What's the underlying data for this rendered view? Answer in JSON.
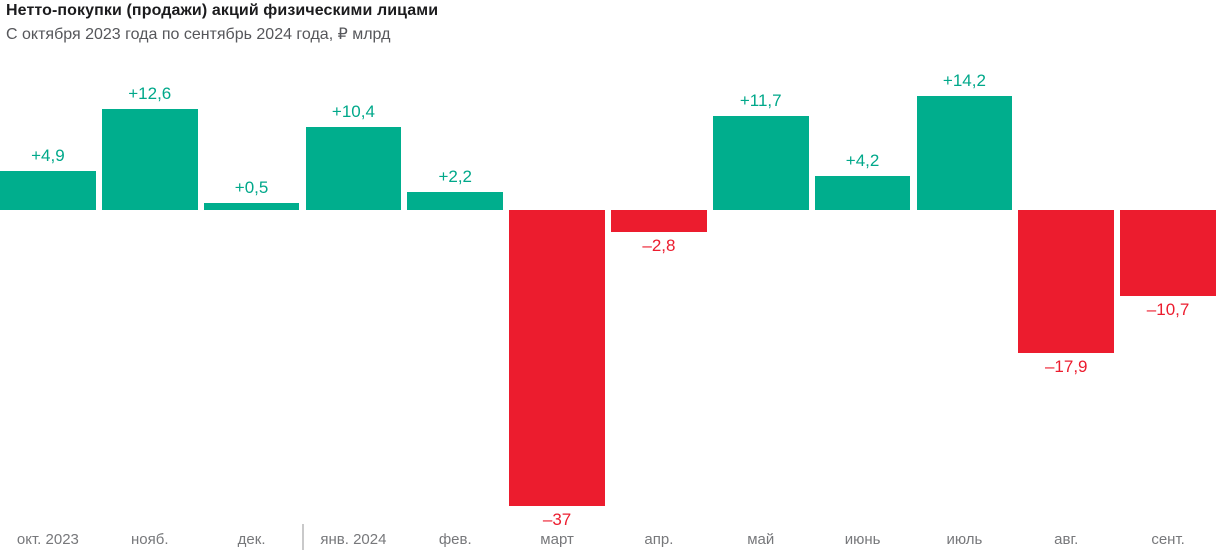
{
  "header": {
    "title": "Нетто-покупки (продажи) акций физическими лицами",
    "subtitle": "С октября 2023 года по сентябрь 2024 года, ₽ млрд"
  },
  "chart_data": {
    "type": "bar",
    "title": "Нетто-покупки (продажи) акций физическими лицами",
    "subtitle": "С октября 2023 года по сентябрь 2024 года, ₽ млрд",
    "xlabel": "",
    "ylabel": "₽ млрд",
    "categories": [
      "окт. 2023",
      "нояб.",
      "дек.",
      "янв. 2024",
      "фев.",
      "март",
      "апр.",
      "май",
      "июнь",
      "июль",
      "авг.",
      "сент."
    ],
    "values": [
      4.9,
      12.6,
      0.5,
      10.4,
      2.2,
      -37,
      -2.8,
      11.7,
      4.2,
      14.2,
      -17.9,
      -10.7
    ],
    "value_labels": [
      "+4,9",
      "+12,6",
      "+0,5",
      "+10,4",
      "+2,2",
      "–37",
      "–2,8",
      "+11,7",
      "+4,2",
      "+14,2",
      "–17,9",
      "–10,7"
    ],
    "ylim": [
      -40,
      16
    ],
    "grid": false,
    "legend": false,
    "colors": {
      "positive": "#00ae8d",
      "negative": "#ec1c2e",
      "axis_text": "#77787b"
    },
    "year_divider_after_index": 2
  }
}
